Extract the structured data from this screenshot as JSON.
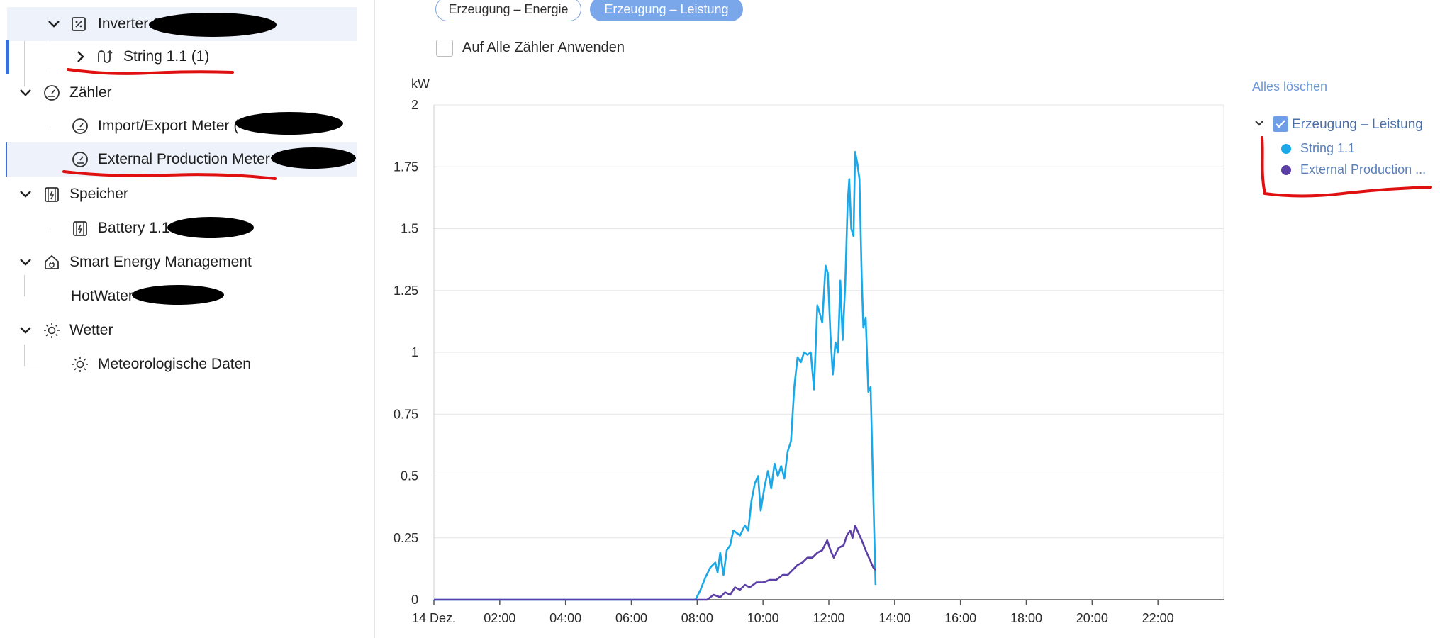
{
  "tree": {
    "inverter": "Inverter 1",
    "string": "String 1.1 (1)",
    "meters_group": "Zähler",
    "meter_import": "Import/Export Meter (",
    "meter_external": "External Production Meter",
    "storage_group": "Speicher",
    "battery": "Battery 1.1",
    "sem_group": "Smart Energy Management",
    "hotwater": "HotWater",
    "weather_group": "Wetter",
    "meteo": "Meteorologische Daten"
  },
  "toggle": {
    "energy": "Erzeugung – Energie",
    "power": "Erzeugung – Leistung",
    "active": "power"
  },
  "apply_all": {
    "label": "Auf Alle Zähler Anwenden",
    "checked": false
  },
  "legend": {
    "clear_all": "Alles löschen",
    "group_label": "Erzeugung – Leistung",
    "group_checked": true,
    "items": [
      {
        "name": "String 1.1",
        "color": "#1aa8e8"
      },
      {
        "name": "External Production ...",
        "color": "#5b3fa6"
      }
    ]
  },
  "chart_data": {
    "type": "line",
    "ylabel": "kW",
    "ylim": [
      0,
      2
    ],
    "yticks": [
      "0",
      "0.25",
      "0.5",
      "0.75",
      "1",
      "1.25",
      "1.5",
      "1.75",
      "2"
    ],
    "xlim": [
      0,
      24
    ],
    "xticks": [
      "14 Dez.",
      "02:00",
      "04:00",
      "06:00",
      "08:00",
      "10:00",
      "12:00",
      "14:00",
      "16:00",
      "18:00",
      "20:00",
      "22:00"
    ],
    "series": [
      {
        "name": "String 1.1",
        "color": "#1aa8e8",
        "points": [
          [
            0,
            0
          ],
          [
            7.95,
            0
          ],
          [
            8.1,
            0.04
          ],
          [
            8.25,
            0.09
          ],
          [
            8.4,
            0.13
          ],
          [
            8.55,
            0.15
          ],
          [
            8.62,
            0.11
          ],
          [
            8.7,
            0.19
          ],
          [
            8.8,
            0.1
          ],
          [
            8.9,
            0.2
          ],
          [
            9.0,
            0.22
          ],
          [
            9.1,
            0.28
          ],
          [
            9.2,
            0.27
          ],
          [
            9.3,
            0.26
          ],
          [
            9.45,
            0.3
          ],
          [
            9.55,
            0.28
          ],
          [
            9.65,
            0.4
          ],
          [
            9.75,
            0.47
          ],
          [
            9.85,
            0.5
          ],
          [
            9.93,
            0.36
          ],
          [
            10.05,
            0.46
          ],
          [
            10.15,
            0.52
          ],
          [
            10.25,
            0.45
          ],
          [
            10.35,
            0.55
          ],
          [
            10.45,
            0.5
          ],
          [
            10.55,
            0.54
          ],
          [
            10.65,
            0.49
          ],
          [
            10.75,
            0.6
          ],
          [
            10.85,
            0.64
          ],
          [
            10.95,
            0.86
          ],
          [
            11.05,
            0.98
          ],
          [
            11.15,
            0.96
          ],
          [
            11.25,
            1.0
          ],
          [
            11.35,
            0.99
          ],
          [
            11.45,
            1.0
          ],
          [
            11.55,
            0.85
          ],
          [
            11.65,
            1.19
          ],
          [
            11.72,
            1.16
          ],
          [
            11.8,
            1.12
          ],
          [
            11.9,
            1.35
          ],
          [
            11.97,
            1.32
          ],
          [
            12.05,
            1.07
          ],
          [
            12.12,
            0.91
          ],
          [
            12.2,
            1.04
          ],
          [
            12.28,
            1.0
          ],
          [
            12.35,
            1.29
          ],
          [
            12.42,
            1.05
          ],
          [
            12.5,
            1.28
          ],
          [
            12.57,
            1.6
          ],
          [
            12.62,
            1.7
          ],
          [
            12.68,
            1.5
          ],
          [
            12.75,
            1.47
          ],
          [
            12.8,
            1.81
          ],
          [
            12.87,
            1.76
          ],
          [
            12.93,
            1.7
          ],
          [
            13.0,
            1.3
          ],
          [
            13.05,
            1.1
          ],
          [
            13.12,
            1.14
          ],
          [
            13.2,
            0.84
          ],
          [
            13.27,
            0.86
          ],
          [
            13.42,
            0.06
          ]
        ]
      },
      {
        "name": "External Production ...",
        "color": "#5b3fa6",
        "points": [
          [
            0,
            0
          ],
          [
            8.3,
            0
          ],
          [
            8.5,
            0.02
          ],
          [
            8.7,
            0.01
          ],
          [
            8.85,
            0.03
          ],
          [
            9.0,
            0.02
          ],
          [
            9.15,
            0.05
          ],
          [
            9.3,
            0.04
          ],
          [
            9.45,
            0.06
          ],
          [
            9.6,
            0.05
          ],
          [
            9.8,
            0.07
          ],
          [
            10.0,
            0.07
          ],
          [
            10.2,
            0.08
          ],
          [
            10.4,
            0.08
          ],
          [
            10.6,
            0.1
          ],
          [
            10.75,
            0.1
          ],
          [
            10.9,
            0.12
          ],
          [
            11.05,
            0.14
          ],
          [
            11.2,
            0.15
          ],
          [
            11.35,
            0.17
          ],
          [
            11.5,
            0.17
          ],
          [
            11.65,
            0.19
          ],
          [
            11.8,
            0.2
          ],
          [
            11.95,
            0.24
          ],
          [
            12.05,
            0.2
          ],
          [
            12.15,
            0.17
          ],
          [
            12.3,
            0.21
          ],
          [
            12.45,
            0.22
          ],
          [
            12.55,
            0.26
          ],
          [
            12.65,
            0.28
          ],
          [
            12.72,
            0.25
          ],
          [
            12.8,
            0.3
          ],
          [
            12.9,
            0.27
          ],
          [
            13.0,
            0.24
          ],
          [
            13.12,
            0.2
          ],
          [
            13.25,
            0.16
          ],
          [
            13.35,
            0.13
          ],
          [
            13.42,
            0.12
          ]
        ]
      }
    ]
  }
}
